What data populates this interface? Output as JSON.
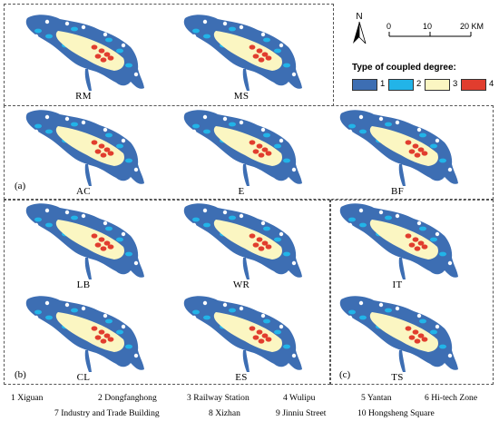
{
  "north_arrow": {
    "label": "N"
  },
  "scale_bar": {
    "ticks": [
      "0",
      "10",
      "20 KM"
    ]
  },
  "legend": {
    "title": "Type of coupled degree:",
    "items": [
      {
        "label": "1",
        "color": "#3d6eb3"
      },
      {
        "label": "2",
        "color": "#22b4e8"
      },
      {
        "label": "3",
        "color": "#fbf6c2"
      },
      {
        "label": "4",
        "color": "#e13d2e"
      }
    ]
  },
  "panels": [
    {
      "label": "RM"
    },
    {
      "label": "MS"
    },
    {
      "label": "AC"
    },
    {
      "label": "E"
    },
    {
      "label": "BF"
    },
    {
      "label": "LB"
    },
    {
      "label": "WR"
    },
    {
      "label": "IT"
    },
    {
      "label": "CL"
    },
    {
      "label": "ES"
    },
    {
      "label": "TS"
    }
  ],
  "groups": [
    {
      "label": "(a)"
    },
    {
      "label": "(b)"
    },
    {
      "label": "(c)"
    }
  ],
  "footer": [
    "1  Xiguan",
    "2  Dongfanghong",
    "3  Railway Station",
    "4  Wulipu",
    "5  Yantan",
    "6  Hi-tech Zone",
    "7  Industry and Trade Building",
    "8  Xizhan",
    "9  Jinniu Street",
    "10  Hongsheng Square"
  ]
}
